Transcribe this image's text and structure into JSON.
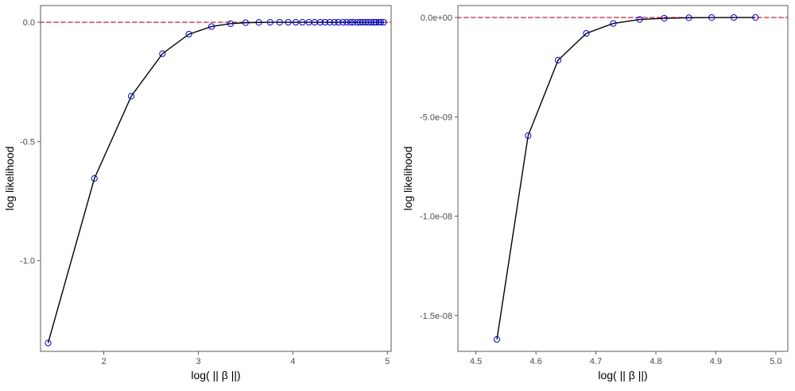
{
  "colors": {
    "line": "#000000",
    "point_stroke": "#0000cc",
    "ref_red": "#ff0000",
    "ref_blue": "#3366cc",
    "panel_border": "#333333"
  },
  "chart_data": [
    {
      "type": "line",
      "xlabel": "log( || β ||)",
      "ylabel": "log likelihood",
      "xlim": [
        1.33,
        5.04
      ],
      "ylim": [
        -1.38,
        0.07
      ],
      "xticks": [
        2,
        3,
        4,
        5
      ],
      "xtick_labels": [
        "2",
        "3",
        "4",
        "5"
      ],
      "yticks": [
        0.0,
        -0.5,
        -1.0
      ],
      "ytick_labels": [
        "0.0",
        "-0.5",
        "-1.0"
      ],
      "grid": false,
      "reference_line_y": 0,
      "series": [
        {
          "x": [
            1.41,
            1.9,
            2.29,
            2.62,
            2.9,
            3.14,
            3.34,
            3.5,
            3.64,
            3.76,
            3.86,
            3.95,
            4.03,
            4.1,
            4.17,
            4.23,
            4.29,
            4.34,
            4.39,
            4.44,
            4.48,
            4.53,
            4.57,
            4.61,
            4.64,
            4.68,
            4.71,
            4.74,
            4.77,
            4.8,
            4.83,
            4.86,
            4.88,
            4.91,
            4.93,
            4.96
          ],
          "y": [
            -1.345,
            -0.655,
            -0.31,
            -0.132,
            -0.05,
            -0.018,
            -0.006,
            -0.002,
            -0.0007,
            -0.0002,
            -0.0001,
            0,
            0,
            0,
            0,
            0,
            0,
            0,
            0,
            0,
            0,
            0,
            0,
            0,
            0,
            0,
            0,
            0,
            0,
            0,
            0,
            0,
            0,
            0,
            0,
            0
          ]
        }
      ]
    },
    {
      "type": "line",
      "xlabel": "log( || β ||)",
      "ylabel": "log likelihood",
      "xlim": [
        4.47,
        5.02
      ],
      "ylim": [
        -1.68e-08,
        6e-10
      ],
      "xticks": [
        4.5,
        4.6,
        4.7,
        4.8,
        4.9,
        5.0
      ],
      "xtick_labels": [
        "4.5",
        "4.6",
        "4.7",
        "4.8",
        "4.9",
        "5.0"
      ],
      "yticks": [
        0,
        -5e-09,
        -1e-08,
        -1.5e-08
      ],
      "ytick_labels": [
        "0.0e+00",
        "-5.0e-09",
        "-1.0e-08",
        "-1.5e-08"
      ],
      "grid": false,
      "reference_line_y": 0,
      "series": [
        {
          "x": [
            4.535,
            4.587,
            4.637,
            4.684,
            4.729,
            4.773,
            4.814,
            4.855,
            4.893,
            4.93,
            4.966
          ],
          "y": [
            -1.62e-08,
            -5.95e-09,
            -2.15e-09,
            -8e-10,
            -3e-10,
            -1e-10,
            -4e-11,
            -1.5e-11,
            -5e-12,
            -2e-12,
            0
          ]
        }
      ]
    }
  ]
}
